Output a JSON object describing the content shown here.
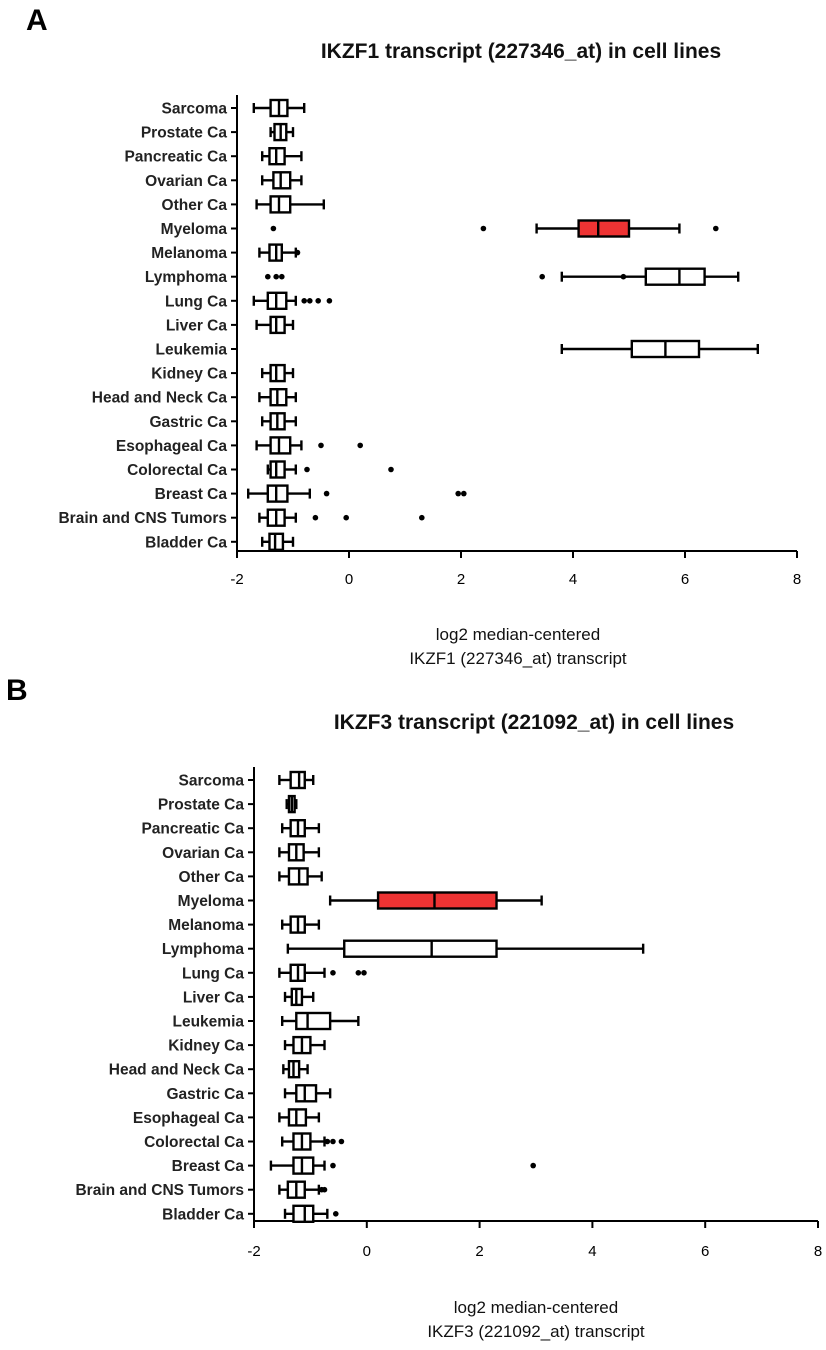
{
  "panel_letters": [
    "A",
    "B"
  ],
  "colors": {
    "highlight": "#ee3333",
    "box": "#ffffff",
    "ink": "#000000"
  },
  "chart_data": [
    {
      "type": "box",
      "title": "IKZF1 transcript (227346_at) in cell lines",
      "xlabel_line1": "log2 median-centered",
      "xlabel_line2": "IKZF1 (227346_at) transcript",
      "xlim": [
        -2,
        8
      ],
      "xticks": [
        -2,
        0,
        2,
        4,
        6,
        8
      ],
      "grid": false,
      "categories": [
        "Sarcoma",
        "Prostate Ca",
        "Pancreatic Ca",
        "Ovarian Ca",
        "Other Ca",
        "Myeloma",
        "Melanoma",
        "Lymphoma",
        "Lung Ca",
        "Liver Ca",
        "Leukemia",
        "Kidney Ca",
        "Head and Neck Ca",
        "Gastric Ca",
        "Esophageal Ca",
        "Colorectal Ca",
        "Breast Ca",
        "Brain and CNS Tumors",
        "Bladder Ca"
      ],
      "boxes": [
        {
          "min": -1.7,
          "q1": -1.4,
          "median": -1.25,
          "q3": -1.1,
          "max": -0.8,
          "outliers": []
        },
        {
          "min": -1.4,
          "q1": -1.33,
          "median": -1.22,
          "q3": -1.12,
          "max": -1.0,
          "outliers": []
        },
        {
          "min": -1.55,
          "q1": -1.42,
          "median": -1.3,
          "q3": -1.15,
          "max": -0.85,
          "outliers": []
        },
        {
          "min": -1.55,
          "q1": -1.35,
          "median": -1.22,
          "q3": -1.05,
          "max": -0.85,
          "outliers": []
        },
        {
          "min": -1.65,
          "q1": -1.4,
          "median": -1.25,
          "q3": -1.05,
          "max": -0.45,
          "outliers": []
        },
        {
          "min": 3.35,
          "q1": 4.1,
          "median": 4.45,
          "q3": 5.0,
          "max": 5.9,
          "outliers": [
            -1.35,
            2.4,
            6.55
          ],
          "highlight": true
        },
        {
          "min": -1.6,
          "q1": -1.42,
          "median": -1.3,
          "q3": -1.2,
          "max": -0.95,
          "outliers": [
            -0.92
          ]
        },
        {
          "min": 3.8,
          "q1": 5.3,
          "median": 5.9,
          "q3": 6.35,
          "max": 6.95,
          "outliers": [
            -1.45,
            -1.3,
            -1.2,
            3.45,
            4.9
          ]
        },
        {
          "min": -1.7,
          "q1": -1.45,
          "median": -1.3,
          "q3": -1.12,
          "max": -0.95,
          "outliers": [
            -0.8,
            -0.7,
            -0.55,
            -0.35
          ]
        },
        {
          "min": -1.65,
          "q1": -1.4,
          "median": -1.3,
          "q3": -1.15,
          "max": -1.0,
          "outliers": []
        },
        {
          "min": 3.8,
          "q1": 5.05,
          "median": 5.65,
          "q3": 6.25,
          "max": 7.3,
          "outliers": []
        },
        {
          "min": -1.55,
          "q1": -1.4,
          "median": -1.3,
          "q3": -1.15,
          "max": -1.0,
          "outliers": []
        },
        {
          "min": -1.6,
          "q1": -1.4,
          "median": -1.28,
          "q3": -1.12,
          "max": -0.95,
          "outliers": []
        },
        {
          "min": -1.55,
          "q1": -1.4,
          "median": -1.28,
          "q3": -1.15,
          "max": -0.95,
          "outliers": []
        },
        {
          "min": -1.65,
          "q1": -1.4,
          "median": -1.25,
          "q3": -1.05,
          "max": -0.85,
          "outliers": [
            -0.5,
            0.2
          ]
        },
        {
          "min": -1.45,
          "q1": -1.4,
          "median": -1.3,
          "q3": -1.15,
          "max": -0.95,
          "outliers": [
            -0.75,
            0.75
          ]
        },
        {
          "min": -1.8,
          "q1": -1.45,
          "median": -1.3,
          "q3": -1.1,
          "max": -0.7,
          "outliers": [
            -0.4,
            1.95,
            2.05
          ]
        },
        {
          "min": -1.6,
          "q1": -1.45,
          "median": -1.3,
          "q3": -1.15,
          "max": -0.95,
          "outliers": [
            -0.6,
            -0.05,
            1.3
          ]
        },
        {
          "min": -1.55,
          "q1": -1.42,
          "median": -1.32,
          "q3": -1.18,
          "max": -1.0,
          "outliers": []
        }
      ]
    },
    {
      "type": "box",
      "title": "IKZF3 transcript (221092_at) in cell lines",
      "xlabel_line1": "log2 median-centered",
      "xlabel_line2": "IKZF3 (221092_at) transcript",
      "xlim": [
        -2,
        8
      ],
      "xticks": [
        -2,
        0,
        2,
        4,
        6,
        8
      ],
      "grid": false,
      "categories": [
        "Sarcoma",
        "Prostate Ca",
        "Pancreatic Ca",
        "Ovarian Ca",
        "Other Ca",
        "Myeloma",
        "Melanoma",
        "Lymphoma",
        "Lung Ca",
        "Liver Ca",
        "Leukemia",
        "Kidney Ca",
        "Head and Neck Ca",
        "Gastric Ca",
        "Esophageal Ca",
        "Colorectal Ca",
        "Breast Ca",
        "Brain and CNS Tumors",
        "Bladder Ca"
      ],
      "boxes": [
        {
          "min": -1.55,
          "q1": -1.35,
          "median": -1.2,
          "q3": -1.1,
          "max": -0.95,
          "outliers": []
        },
        {
          "min": -1.42,
          "q1": -1.38,
          "median": -1.33,
          "q3": -1.28,
          "max": -1.25,
          "outliers": []
        },
        {
          "min": -1.5,
          "q1": -1.35,
          "median": -1.22,
          "q3": -1.1,
          "max": -0.85,
          "outliers": []
        },
        {
          "min": -1.55,
          "q1": -1.38,
          "median": -1.25,
          "q3": -1.12,
          "max": -0.85,
          "outliers": []
        },
        {
          "min": -1.55,
          "q1": -1.38,
          "median": -1.2,
          "q3": -1.05,
          "max": -0.8,
          "outliers": []
        },
        {
          "min": -0.65,
          "q1": 0.2,
          "median": 1.2,
          "q3": 2.3,
          "max": 3.1,
          "outliers": [],
          "highlight": true
        },
        {
          "min": -1.5,
          "q1": -1.35,
          "median": -1.22,
          "q3": -1.1,
          "max": -0.85,
          "outliers": []
        },
        {
          "min": -1.4,
          "q1": -0.4,
          "median": 1.15,
          "q3": 2.3,
          "max": 4.9,
          "outliers": []
        },
        {
          "min": -1.55,
          "q1": -1.35,
          "median": -1.22,
          "q3": -1.1,
          "max": -0.75,
          "outliers": [
            -0.6,
            -0.15,
            -0.05
          ]
        },
        {
          "min": -1.45,
          "q1": -1.33,
          "median": -1.25,
          "q3": -1.15,
          "max": -0.95,
          "outliers": []
        },
        {
          "min": -1.5,
          "q1": -1.25,
          "median": -1.05,
          "q3": -0.65,
          "max": -0.15,
          "outliers": []
        },
        {
          "min": -1.45,
          "q1": -1.3,
          "median": -1.15,
          "q3": -1.0,
          "max": -0.75,
          "outliers": []
        },
        {
          "min": -1.48,
          "q1": -1.38,
          "median": -1.3,
          "q3": -1.2,
          "max": -1.05,
          "outliers": []
        },
        {
          "min": -1.45,
          "q1": -1.25,
          "median": -1.1,
          "q3": -0.9,
          "max": -0.65,
          "outliers": []
        },
        {
          "min": -1.55,
          "q1": -1.38,
          "median": -1.25,
          "q3": -1.08,
          "max": -0.85,
          "outliers": []
        },
        {
          "min": -1.5,
          "q1": -1.3,
          "median": -1.15,
          "q3": -1.0,
          "max": -0.75,
          "outliers": [
            -0.7,
            -0.6,
            -0.45
          ]
        },
        {
          "min": -1.7,
          "q1": -1.3,
          "median": -1.15,
          "q3": -0.95,
          "max": -0.75,
          "outliers": [
            -0.6,
            2.95
          ]
        },
        {
          "min": -1.55,
          "q1": -1.4,
          "median": -1.25,
          "q3": -1.1,
          "max": -0.85,
          "outliers": [
            -0.8,
            -0.75
          ]
        },
        {
          "min": -1.45,
          "q1": -1.3,
          "median": -1.1,
          "q3": -0.95,
          "max": -0.7,
          "outliers": [
            -0.55
          ]
        }
      ]
    }
  ]
}
